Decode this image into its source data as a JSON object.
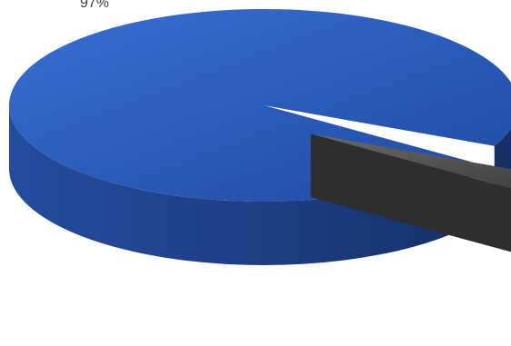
{
  "chart_data": {
    "type": "pie",
    "style": "3d-exploded",
    "slices": [
      {
        "value": 97,
        "label": "97%",
        "color": "#2f5fbf"
      },
      {
        "value": 3,
        "label": "",
        "color": "#4a4a4a"
      }
    ],
    "legend": "none"
  }
}
